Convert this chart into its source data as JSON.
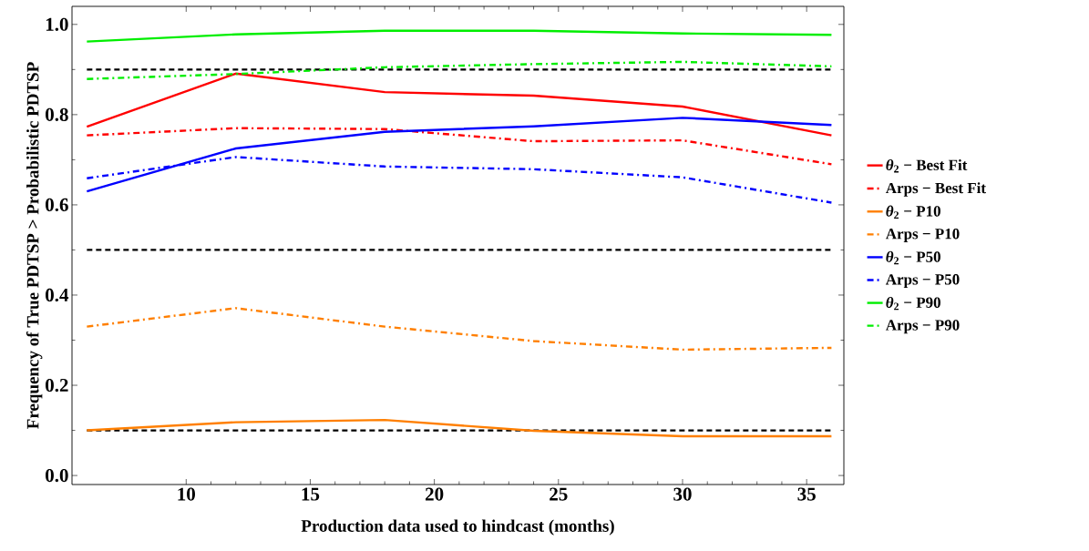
{
  "chart_data": {
    "type": "line",
    "xlabel": "Production data used to hindcast (months)",
    "ylabel": "Frequency of True PDTSP > Probabilistic PDTSP",
    "x": [
      6,
      12,
      18,
      24,
      30,
      36
    ],
    "xlim": [
      5.4,
      36.5
    ],
    "ylim": [
      -0.02,
      1.04
    ],
    "xticks": [
      10,
      15,
      20,
      25,
      30,
      35
    ],
    "yticks": [
      {
        "value": 0,
        "label": "0.0"
      },
      0.2,
      0.4,
      0.6,
      0.8,
      {
        "value": 1,
        "label": "1.0"
      }
    ],
    "grid": false,
    "legend": "right",
    "marker": "none",
    "series": [
      {
        "name": "*θ*$_{2}$ − Best Fit",
        "color": "#ff0000",
        "line_style": "solid",
        "values": [
          0.773,
          0.891,
          0.85,
          0.842,
          0.818,
          0.754
        ]
      },
      {
        "name": "Arps − Best Fit",
        "color": "#ff0000",
        "line_style": "dashdot",
        "values": [
          0.754,
          0.77,
          0.768,
          0.741,
          0.743,
          0.69
        ]
      },
      {
        "name": "*θ*$_{2}$ − P10",
        "color": "#ff7f00",
        "line_style": "solid",
        "values": [
          0.1,
          0.118,
          0.123,
          0.099,
          0.087,
          0.087
        ]
      },
      {
        "name": "Arps − P10",
        "color": "#ff7f00",
        "line_style": "dashdot",
        "values": [
          0.33,
          0.371,
          0.33,
          0.298,
          0.279,
          0.283
        ]
      },
      {
        "name": "*θ*$_{2}$ − P50",
        "color": "#0000ff",
        "line_style": "solid",
        "values": [
          0.63,
          0.725,
          0.762,
          0.774,
          0.793,
          0.777
        ]
      },
      {
        "name": "Arps − P50",
        "color": "#0000ff",
        "line_style": "dashdot",
        "values": [
          0.659,
          0.706,
          0.685,
          0.679,
          0.661,
          0.605
        ]
      },
      {
        "name": "*θ*$_{2}$ − P90",
        "color": "#00ee00",
        "line_style": "solid",
        "values": [
          0.962,
          0.978,
          0.986,
          0.986,
          0.98,
          0.977
        ]
      },
      {
        "name": "Arps − P90",
        "color": "#00ee00",
        "line_style": "dashdot",
        "values": [
          0.879,
          0.89,
          0.905,
          0.912,
          0.917,
          0.907
        ]
      }
    ],
    "ref_lines": [
      {
        "axis": "y",
        "value": 0.1,
        "color": "#000000",
        "line_style": "dashed"
      },
      {
        "axis": "y",
        "value": 0.5,
        "color": "#000000",
        "line_style": "dashed"
      },
      {
        "axis": "y",
        "value": 0.9,
        "color": "#000000",
        "line_style": "dashed"
      }
    ]
  }
}
